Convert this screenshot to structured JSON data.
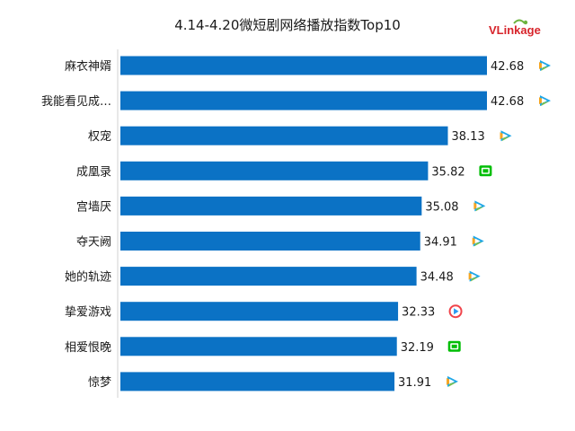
{
  "chart_data": {
    "type": "bar",
    "orientation": "horizontal",
    "title": "4.14-4.20微短剧网络播放指数Top10",
    "categories": [
      "麻衣神婿",
      "我能看见成…",
      "权宠",
      "成凰录",
      "宫墙厌",
      "夺天阙",
      "她的轨迹",
      "挚爱游戏",
      "相爱恨晚",
      "惊梦"
    ],
    "values": [
      42.68,
      42.68,
      38.13,
      35.82,
      35.08,
      34.91,
      34.48,
      32.33,
      32.19,
      31.91
    ],
    "value_labels": [
      "42.68",
      "42.68",
      "38.13",
      "35.82",
      "35.08",
      "34.91",
      "34.48",
      "32.33",
      "32.19",
      "31.91"
    ],
    "platform_icons": [
      "tencent-video-icon",
      "tencent-video-icon",
      "tencent-video-icon",
      "iqiyi-icon",
      "tencent-video-icon",
      "tencent-video-icon",
      "tencent-video-icon",
      "youku-icon",
      "iqiyi-icon",
      "tencent-video-icon"
    ],
    "xlim": [
      0,
      44.5
    ],
    "grid": false,
    "legend": "none",
    "bar_color": "#0B72C5"
  },
  "brand": {
    "logo_prefix": "VLin",
    "logo_suffix": "kage"
  },
  "colors": {
    "logo_red": "#D7242B",
    "logo_green": "#6CB33E",
    "tencent_blue": "#1FA7E8",
    "tencent_green": "#7DC243",
    "tencent_orange": "#F5A623",
    "iqiyi_green": "#00BE06",
    "youku_red": "#F0434A",
    "youku_blue": "#2A9AF3"
  }
}
